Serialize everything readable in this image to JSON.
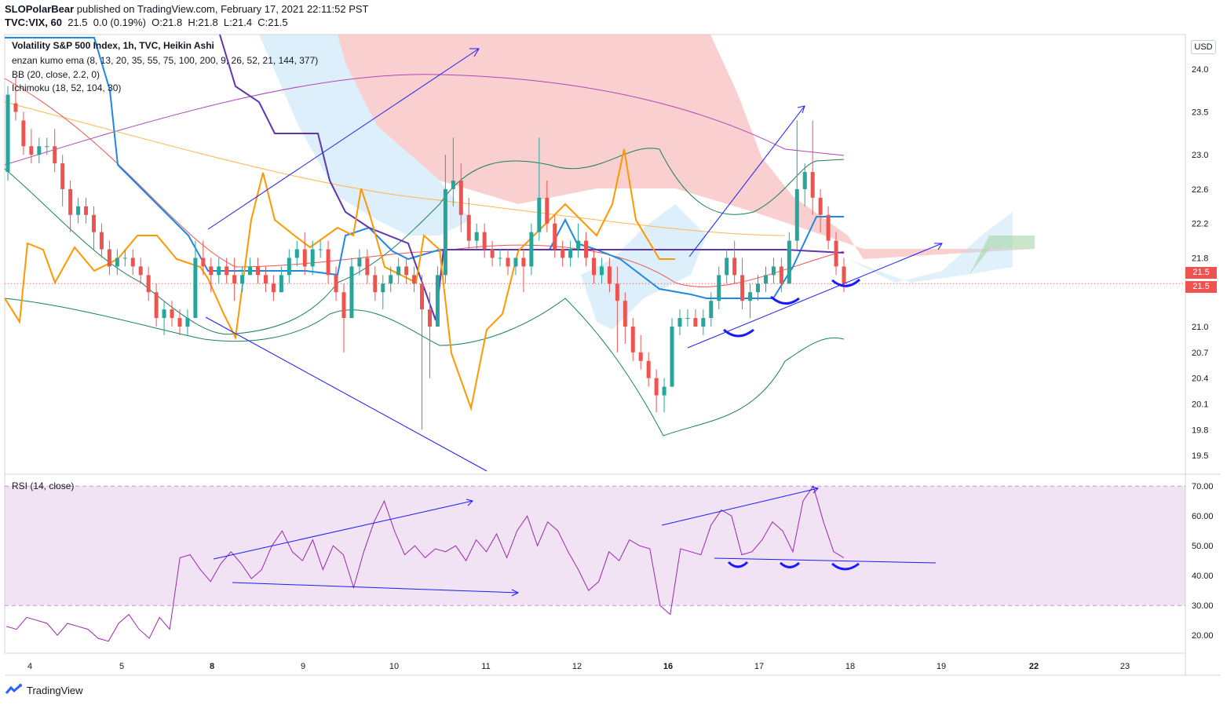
{
  "header": {
    "author": "SLOPolarBear",
    "published": "published on TradingView.com, February 17, 2021 22:11:52 PST",
    "symbol": "TVC:VIX, 60",
    "ohlc": "21.5  0.0 (0.19%)  O:21.8  H:21.8  L:21.4  C:21.5"
  },
  "legend": {
    "main": "Volatility S&P 500 Index, 1h, TVC, Heikin Ashi",
    "ema": "enzan kumo ema (8, 13, 20, 35, 55, 75, 100, 200, 9, 26, 52, 21, 144, 377)",
    "bb": "BB (20, close, 2.2, 0)",
    "ichimoku": "Ichimoku (18, 52, 104, 30)",
    "rsi": "RSI (14, close)"
  },
  "axis": {
    "currency": "USD",
    "last_price_1": "21.5",
    "last_price_2": "21.5",
    "bold_date_labels": [
      "8",
      "16",
      "22"
    ]
  },
  "brand": "TradingView",
  "colors": {
    "up": "#26a69a",
    "down": "#ef5350",
    "rsi_line": "#9c27b0",
    "rsi_band": "#e1bee7",
    "annotation": "#1a1aff",
    "kumo_bear": "#f8bbbb",
    "kumo_bull": "#b3dcf5",
    "orange": "#ff9800",
    "bb": "#1b7f5a"
  },
  "chart_data": [
    {
      "type": "candlestick",
      "title": "Volatility S&P 500 Index, 1h, TVC, Heikin Ashi",
      "x_ticks": [
        "4",
        "5",
        "8",
        "9",
        "10",
        "11",
        "12",
        "16",
        "17",
        "18",
        "19",
        "22",
        "23"
      ],
      "y_ticks": [
        24.0,
        23.5,
        23.0,
        22.6,
        22.2,
        21.8,
        21.5,
        21.0,
        20.7,
        20.4,
        20.1,
        19.8,
        19.5
      ],
      "ylim": [
        19.3,
        24.4
      ],
      "last_price": 21.5,
      "candles": [
        [
          22.8,
          23.8,
          22.7,
          23.7
        ],
        [
          23.6,
          23.9,
          23.4,
          23.5
        ],
        [
          23.4,
          23.5,
          23.0,
          23.1
        ],
        [
          23.1,
          23.3,
          22.9,
          23.0
        ],
        [
          23.0,
          23.2,
          22.9,
          23.1
        ],
        [
          23.1,
          23.2,
          23.0,
          23.1
        ],
        [
          23.1,
          23.3,
          22.8,
          22.9
        ],
        [
          22.9,
          23.0,
          22.4,
          22.6
        ],
        [
          22.6,
          22.7,
          22.1,
          22.3
        ],
        [
          22.3,
          22.5,
          22.2,
          22.4
        ],
        [
          22.4,
          22.5,
          22.2,
          22.3
        ],
        [
          22.3,
          22.4,
          21.9,
          22.1
        ],
        [
          22.1,
          22.2,
          21.8,
          21.9
        ],
        [
          21.9,
          22.0,
          21.6,
          21.7
        ],
        [
          21.7,
          21.9,
          21.6,
          21.8
        ],
        [
          21.8,
          21.9,
          21.7,
          21.8
        ],
        [
          21.8,
          21.9,
          21.6,
          21.7
        ],
        [
          21.7,
          21.8,
          21.5,
          21.6
        ],
        [
          21.6,
          21.7,
          21.3,
          21.4
        ],
        [
          21.4,
          21.5,
          21.0,
          21.1
        ],
        [
          21.1,
          21.3,
          20.9,
          21.2
        ],
        [
          21.2,
          21.3,
          21.0,
          21.1
        ],
        [
          21.1,
          21.2,
          20.9,
          21.0
        ],
        [
          21.0,
          21.2,
          20.9,
          21.1
        ],
        [
          21.1,
          22.0,
          21.1,
          21.8
        ],
        [
          21.8,
          22.0,
          21.6,
          21.7
        ],
        [
          21.7,
          21.8,
          21.4,
          21.6
        ],
        [
          21.6,
          21.8,
          21.5,
          21.7
        ],
        [
          21.7,
          21.8,
          21.5,
          21.6
        ],
        [
          21.6,
          21.8,
          21.3,
          21.5
        ],
        [
          21.5,
          21.7,
          21.4,
          21.6
        ],
        [
          21.6,
          21.8,
          21.6,
          21.7
        ],
        [
          21.7,
          21.8,
          21.5,
          21.6
        ],
        [
          21.6,
          21.7,
          21.4,
          21.5
        ],
        [
          21.5,
          21.6,
          21.3,
          21.4
        ],
        [
          21.4,
          21.7,
          21.4,
          21.6
        ],
        [
          21.6,
          21.9,
          21.5,
          21.8
        ],
        [
          21.8,
          22.0,
          21.7,
          21.9
        ],
        [
          21.9,
          22.1,
          21.6,
          21.7
        ],
        [
          21.7,
          22.0,
          21.6,
          21.9
        ],
        [
          21.9,
          22.0,
          21.8,
          21.9
        ],
        [
          21.9,
          22.0,
          21.5,
          21.6
        ],
        [
          21.6,
          21.7,
          21.3,
          21.4
        ],
        [
          21.4,
          21.5,
          20.7,
          21.1
        ],
        [
          21.1,
          21.8,
          21.1,
          21.7
        ],
        [
          21.7,
          21.9,
          21.6,
          21.8
        ],
        [
          21.8,
          21.9,
          21.5,
          21.6
        ],
        [
          21.6,
          21.7,
          21.3,
          21.4
        ],
        [
          21.4,
          21.6,
          21.2,
          21.5
        ],
        [
          21.5,
          21.7,
          21.4,
          21.6
        ],
        [
          21.6,
          21.8,
          21.5,
          21.7
        ],
        [
          21.7,
          21.8,
          21.5,
          21.6
        ],
        [
          21.6,
          21.7,
          21.4,
          21.5
        ],
        [
          21.5,
          21.6,
          19.8,
          21.2
        ],
        [
          21.2,
          21.4,
          20.4,
          21.0
        ],
        [
          21.0,
          21.7,
          21.0,
          21.6
        ],
        [
          21.6,
          23.0,
          21.5,
          22.6
        ],
        [
          22.6,
          23.2,
          22.4,
          22.7
        ],
        [
          22.7,
          22.9,
          22.1,
          22.3
        ],
        [
          22.3,
          22.5,
          21.9,
          22.0
        ],
        [
          22.0,
          22.2,
          21.9,
          22.1
        ],
        [
          22.1,
          22.2,
          21.8,
          21.9
        ],
        [
          21.9,
          22.0,
          21.7,
          21.8
        ],
        [
          21.8,
          21.9,
          21.7,
          21.8
        ],
        [
          21.8,
          21.9,
          21.6,
          21.7
        ],
        [
          21.7,
          21.8,
          21.6,
          21.8
        ],
        [
          21.8,
          21.9,
          21.4,
          21.7
        ],
        [
          21.7,
          22.2,
          21.6,
          22.1
        ],
        [
          22.1,
          23.2,
          22.0,
          22.5
        ],
        [
          22.5,
          22.7,
          22.1,
          22.2
        ],
        [
          22.2,
          22.3,
          21.8,
          21.9
        ],
        [
          21.9,
          22.0,
          21.7,
          21.8
        ],
        [
          21.8,
          22.0,
          21.7,
          21.9
        ],
        [
          21.9,
          22.2,
          21.8,
          22.0
        ],
        [
          22.0,
          22.1,
          21.7,
          21.8
        ],
        [
          21.8,
          21.9,
          21.5,
          21.6
        ],
        [
          21.6,
          21.8,
          21.5,
          21.7
        ],
        [
          21.7,
          21.8,
          21.4,
          21.5
        ],
        [
          21.5,
          21.7,
          20.7,
          21.3
        ],
        [
          21.3,
          21.4,
          20.8,
          21.0
        ],
        [
          21.0,
          21.1,
          20.6,
          20.7
        ],
        [
          20.7,
          20.9,
          20.5,
          20.6
        ],
        [
          20.6,
          20.7,
          20.3,
          20.4
        ],
        [
          20.4,
          20.5,
          20.0,
          20.2
        ],
        [
          20.2,
          20.4,
          20.0,
          20.3
        ],
        [
          20.3,
          21.1,
          20.3,
          21.0
        ],
        [
          21.0,
          21.2,
          20.9,
          21.1
        ],
        [
          21.1,
          21.2,
          21.0,
          21.1
        ],
        [
          21.1,
          21.2,
          21.0,
          21.0
        ],
        [
          21.0,
          21.2,
          20.9,
          21.1
        ],
        [
          21.1,
          21.4,
          21.0,
          21.3
        ],
        [
          21.3,
          21.7,
          21.2,
          21.6
        ],
        [
          21.6,
          21.9,
          21.5,
          21.8
        ],
        [
          21.8,
          22.0,
          21.5,
          21.6
        ],
        [
          21.6,
          21.8,
          21.2,
          21.3
        ],
        [
          21.3,
          21.5,
          21.1,
          21.4
        ],
        [
          21.4,
          21.6,
          21.3,
          21.5
        ],
        [
          21.5,
          21.7,
          21.4,
          21.6
        ],
        [
          21.6,
          21.8,
          21.5,
          21.7
        ],
        [
          21.7,
          21.8,
          21.4,
          21.5
        ],
        [
          21.5,
          22.1,
          21.5,
          22.0
        ],
        [
          22.0,
          23.4,
          21.9,
          22.6
        ],
        [
          22.6,
          22.9,
          22.4,
          22.8
        ],
        [
          22.8,
          23.4,
          22.3,
          22.5
        ],
        [
          22.5,
          22.6,
          22.1,
          22.3
        ],
        [
          22.3,
          22.4,
          21.9,
          22.0
        ],
        [
          22.0,
          22.1,
          21.6,
          21.7
        ],
        [
          21.7,
          21.8,
          21.4,
          21.5
        ]
      ]
    },
    {
      "type": "line",
      "title": "RSI (14, close)",
      "y_ticks": [
        70.0,
        60.0,
        50.0,
        40.0,
        30.0,
        20.0
      ],
      "ylim": [
        14,
        74
      ],
      "band": [
        30,
        70
      ],
      "values": [
        23,
        22,
        26,
        25,
        24,
        20,
        24,
        23,
        22,
        19,
        18,
        24,
        27,
        22,
        19,
        26,
        22,
        46,
        47,
        42,
        38,
        44,
        48,
        44,
        39,
        42,
        50,
        55,
        48,
        45,
        52,
        42,
        50,
        47,
        36,
        48,
        58,
        65,
        55,
        47,
        50,
        46,
        49,
        48,
        50,
        45,
        52,
        48,
        54,
        46,
        55,
        60,
        50,
        58,
        55,
        48,
        42,
        35,
        38,
        48,
        45,
        52,
        50,
        49,
        30,
        27,
        49,
        48,
        47,
        57,
        62,
        60,
        47,
        48,
        52,
        58,
        55,
        48,
        65,
        70,
        58,
        48,
        46
      ],
      "annotations": [
        "divergence lines",
        "support line"
      ]
    }
  ]
}
